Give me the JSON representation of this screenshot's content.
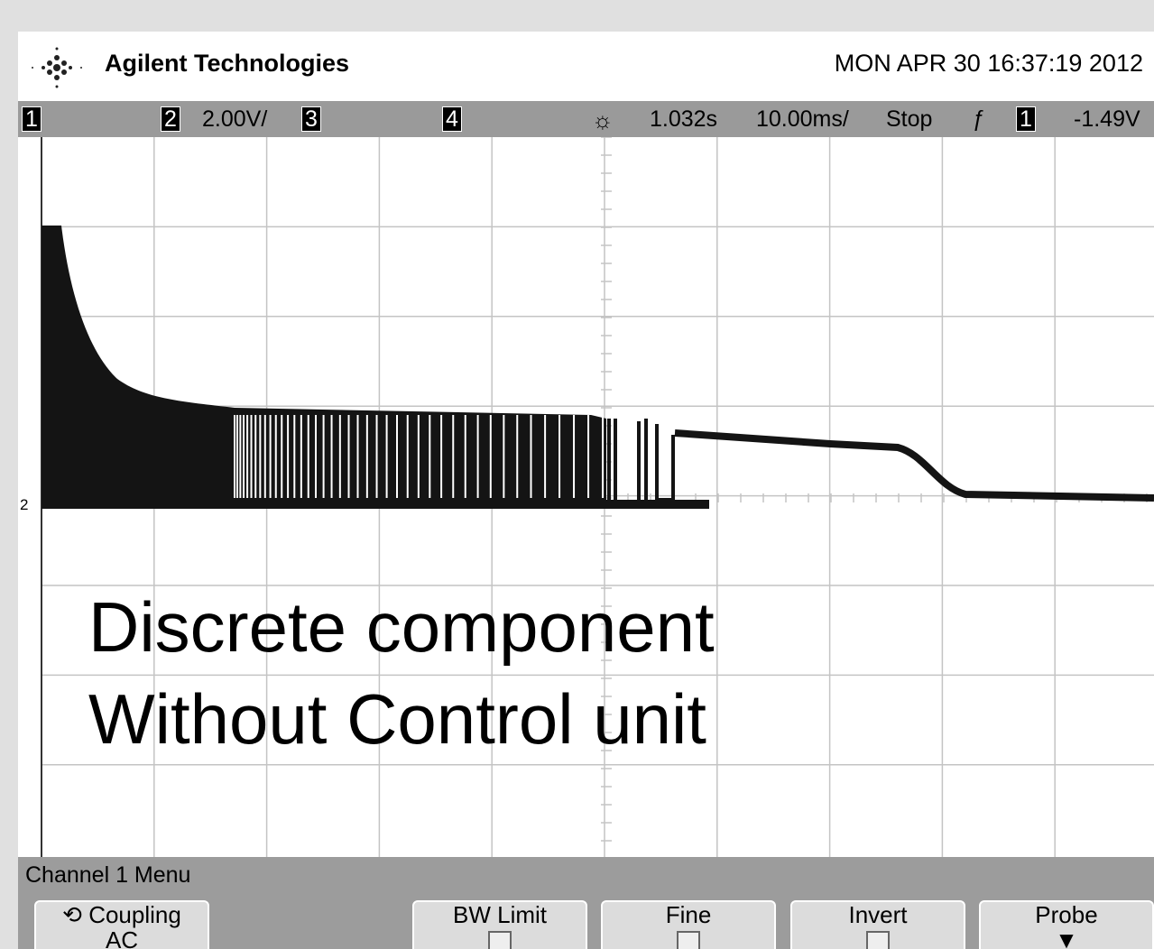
{
  "header": {
    "brand": "Agilent Technologies",
    "datetime": "MON APR 30 16:37:19 2012"
  },
  "status": {
    "ch1": "1",
    "ch2": "2",
    "ch2_scale": "2.00V/",
    "ch3": "3",
    "ch4": "4",
    "delay": "1.032s",
    "timebase": "10.00ms/",
    "run_state": "Stop",
    "trigger_source": "1",
    "trigger_level": "-1.49V"
  },
  "ground_marker": "2",
  "overlay": {
    "lines": [
      "Discrete component",
      "Without Control unit"
    ]
  },
  "menu": {
    "title": "Channel 1 Menu",
    "buttons": [
      {
        "label": "Coupling",
        "value": "AC"
      },
      {
        "label": "BW Limit"
      },
      {
        "label": "Fine"
      },
      {
        "label": "Invert"
      },
      {
        "label": "Probe"
      }
    ]
  }
}
